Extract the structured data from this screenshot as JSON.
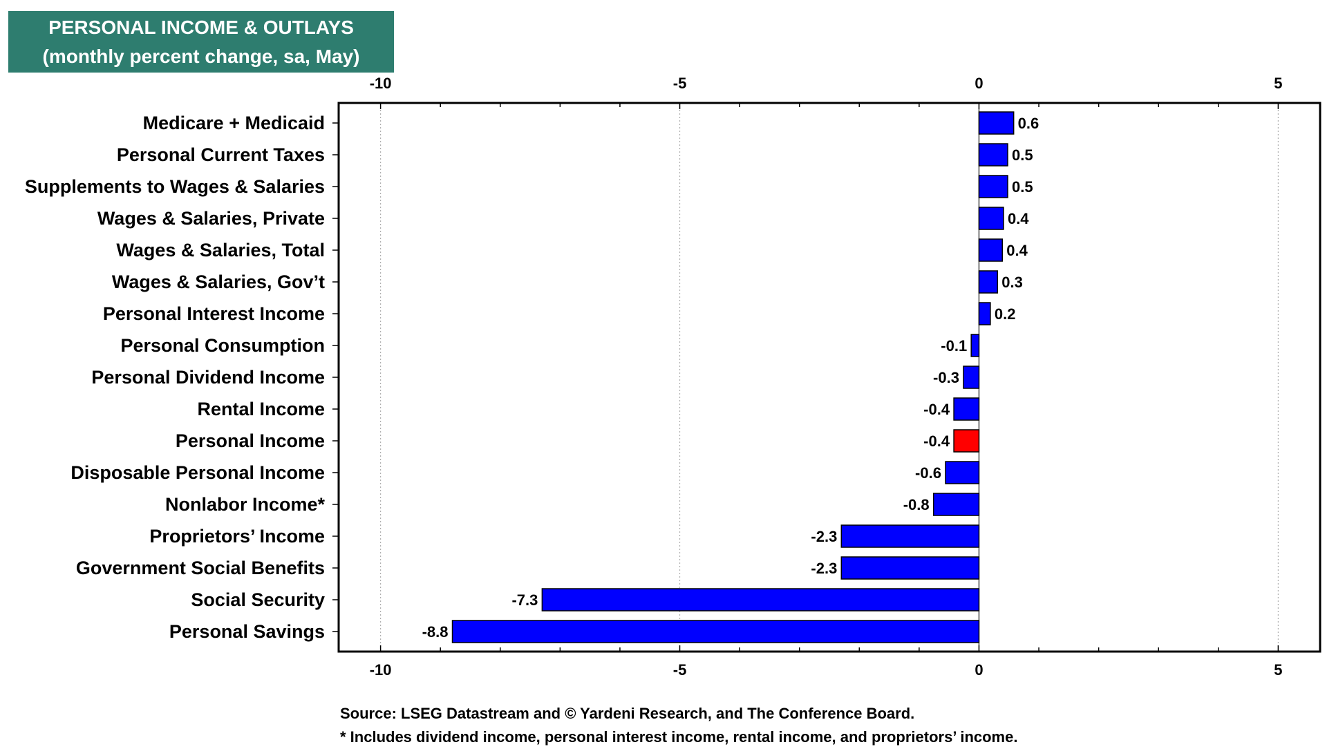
{
  "title": {
    "line1": "PERSONAL INCOME & OUTLAYS",
    "line2": "(monthly percent change, sa, May)"
  },
  "notes": {
    "source": "Source: LSEG Datastream and © Yardeni Research, and The Conference Board.",
    "footnote": "* Includes dividend income, personal interest income, rental income, and proprietors’ income."
  },
  "colors": {
    "header_bg": "#2e7d6f",
    "bar_default": "#0000ff",
    "bar_highlight": "#ff0000"
  },
  "chart_data": {
    "type": "bar",
    "orientation": "horizontal",
    "title": "PERSONAL INCOME & OUTLAYS",
    "subtitle": "(monthly percent change, sa, May)",
    "xlabel": "",
    "ylabel": "",
    "xlim": [
      -10.7,
      5.7
    ],
    "x_ticks": [
      -10,
      -5,
      0,
      5
    ],
    "x_tick_labels": [
      "-10",
      "-5",
      "0",
      "5"
    ],
    "tick_labels_top_and_bottom": true,
    "grid": "vertical dotted",
    "legend": "none",
    "highlight_category": "Personal Income",
    "categories": [
      "Medicare + Medicaid",
      "Personal Current Taxes",
      "Supplements to Wages & Salaries",
      "Wages & Salaries, Private",
      "Wages & Salaries, Total",
      "Wages & Salaries, Gov’t",
      "Personal Interest Income",
      "Personal Consumption",
      "Personal Dividend Income",
      "Rental Income",
      "Personal Income",
      "Disposable Personal Income",
      "Nonlabor Income*",
      "Proprietors’ Income",
      "Government Social Benefits",
      "Social Security",
      "Personal Savings"
    ],
    "values": [
      0.58,
      0.48,
      0.48,
      0.41,
      0.39,
      0.31,
      0.19,
      -0.13,
      -0.26,
      -0.42,
      -0.42,
      -0.56,
      -0.76,
      -2.3,
      -2.3,
      -7.3,
      -8.8
    ],
    "value_labels": [
      "0.6",
      "0.5",
      "0.5",
      "0.4",
      "0.4",
      "0.3",
      "0.2",
      "-0.1",
      "-0.3",
      "-0.4",
      "-0.4",
      "-0.6",
      "-0.8",
      "-2.3",
      "-2.3",
      "-7.3",
      "-8.8"
    ]
  }
}
